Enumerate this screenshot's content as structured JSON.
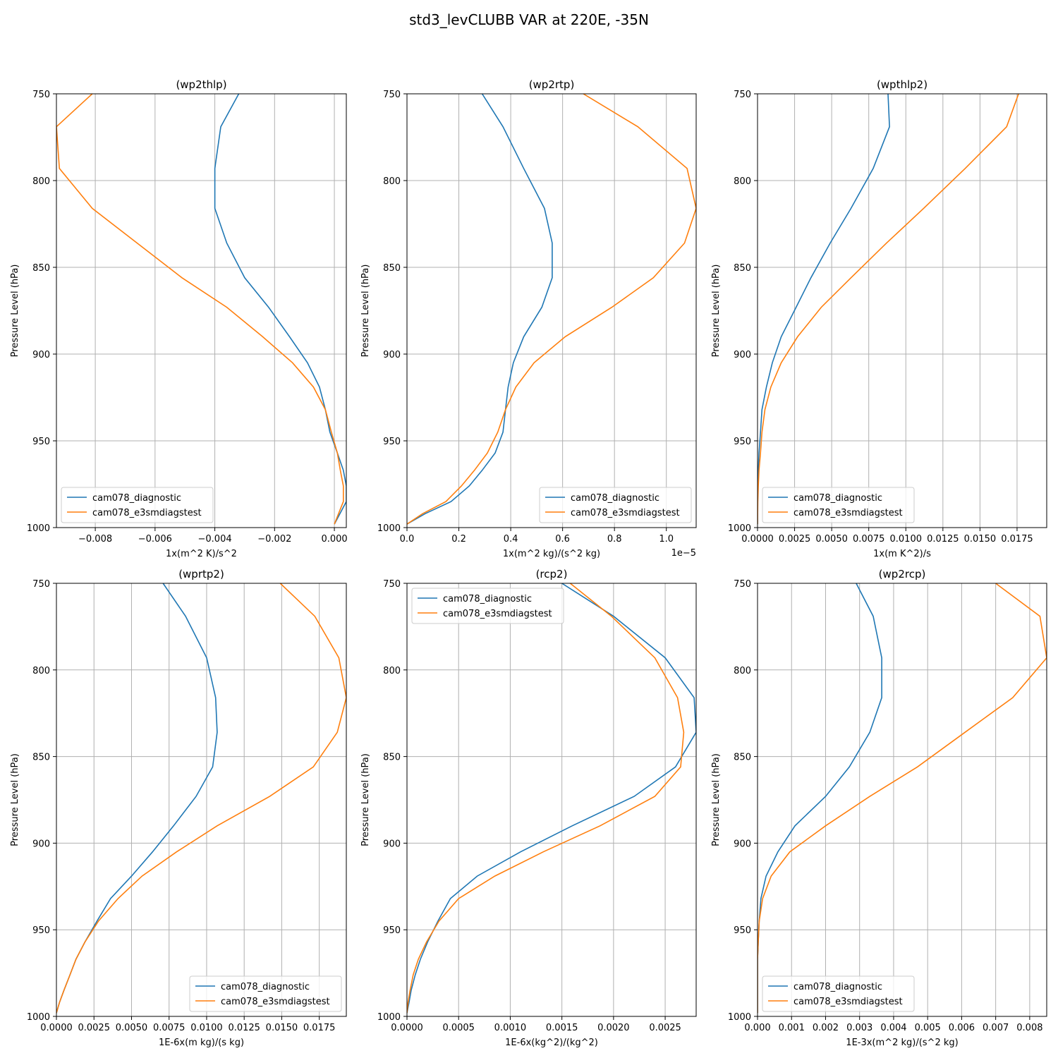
{
  "figure": {
    "title": "std3_levCLUBB VAR at 220E, -35N",
    "ylabel": "Pressure Level (hPa)",
    "series_names": [
      "cam078_diagnostic",
      "cam078_e3smdiagstest"
    ],
    "colors": {
      "cam078_diagnostic": "#1f77b4",
      "cam078_e3smdiagstest": "#ff7f0e",
      "grid": "#b0b0b0"
    }
  },
  "chart_data": [
    {
      "type": "line",
      "title": "(wp2thlp)",
      "xlabel": "1x(m^2 K)/s^2",
      "ylabel": "Pressure Level (hPa)",
      "xlim": [
        -0.0093,
        0.0004
      ],
      "ylim": [
        1000,
        750
      ],
      "xticks": [
        -0.008,
        -0.006,
        -0.004,
        -0.002,
        0.0
      ],
      "xtick_labels": [
        "−0.008",
        "−0.006",
        "−0.004",
        "−0.002",
        "0.000"
      ],
      "yticks": [
        750,
        800,
        850,
        900,
        950,
        1000
      ],
      "offset_label": "",
      "legend_loc": "lower left",
      "y": [
        750,
        769,
        793,
        816,
        836,
        856,
        873,
        890,
        905,
        919,
        932,
        945,
        957,
        967,
        976,
        985,
        998
      ],
      "series": [
        {
          "name": "cam078_diagnostic",
          "values": [
            -0.0032,
            -0.0038,
            -0.004,
            -0.004,
            -0.0036,
            -0.003,
            -0.0022,
            -0.0015,
            -0.0009,
            -0.0005,
            -0.0003,
            -0.00015,
            0.0001,
            0.0003,
            0.0004,
            0.0004,
            0.0
          ]
        },
        {
          "name": "cam078_e3smdiagstest",
          "values": [
            -0.0081,
            -0.0093,
            -0.0092,
            -0.0081,
            -0.0066,
            -0.0051,
            -0.0036,
            -0.0024,
            -0.0014,
            -0.0007,
            -0.0003,
            -0.0001,
            0.0001,
            0.0002,
            0.0003,
            0.0003,
            0.0
          ]
        }
      ]
    },
    {
      "type": "line",
      "title": "(wp2rtp)",
      "xlabel": "1x(m^2 kg)/(s^2 kg)",
      "ylabel": "Pressure Level (hPa)",
      "xlim": [
        0.0,
        1.115
      ],
      "ylim": [
        1000,
        750
      ],
      "xticks": [
        0.0,
        0.2,
        0.4,
        0.6,
        0.8,
        1.0
      ],
      "xtick_labels": [
        "0.0",
        "0.2",
        "0.4",
        "0.6",
        "0.8",
        "1.0"
      ],
      "yticks": [
        750,
        800,
        850,
        900,
        950,
        1000
      ],
      "offset_label": "1e−5",
      "legend_loc": "lower right",
      "y": [
        750,
        769,
        793,
        816,
        836,
        856,
        873,
        890,
        905,
        919,
        932,
        945,
        957,
        967,
        976,
        985,
        992,
        998
      ],
      "series": [
        {
          "name": "cam078_diagnostic",
          "values": [
            0.29,
            0.37,
            0.45,
            0.53,
            0.56,
            0.56,
            0.52,
            0.45,
            0.41,
            0.39,
            0.38,
            0.37,
            0.34,
            0.29,
            0.24,
            0.17,
            0.07,
            0.0
          ]
        },
        {
          "name": "cam078_e3smdiagstest",
          "values": [
            0.68,
            0.89,
            1.08,
            1.115,
            1.07,
            0.95,
            0.79,
            0.61,
            0.49,
            0.42,
            0.38,
            0.35,
            0.31,
            0.26,
            0.21,
            0.15,
            0.06,
            0.0
          ]
        }
      ]
    },
    {
      "type": "line",
      "title": "(wpthlp2)",
      "xlabel": "1x(m K^2)/s",
      "ylabel": "Pressure Level (hPa)",
      "xlim": [
        0.0,
        0.0195
      ],
      "ylim": [
        1000,
        750
      ],
      "xticks": [
        0.0,
        0.0025,
        0.005,
        0.0075,
        0.01,
        0.0125,
        0.015,
        0.0175
      ],
      "xtick_labels": [
        "0.0000",
        "0.0025",
        "0.0050",
        "0.0075",
        "0.0100",
        "0.0125",
        "0.0150",
        "0.0175"
      ],
      "yticks": [
        750,
        800,
        850,
        900,
        950,
        1000
      ],
      "offset_label": "",
      "legend_loc": "lower left",
      "y": [
        750,
        769,
        793,
        816,
        836,
        856,
        873,
        890,
        905,
        919,
        932,
        945,
        957,
        967,
        976,
        985,
        998
      ],
      "series": [
        {
          "name": "cam078_diagnostic",
          "values": [
            0.0088,
            0.0089,
            0.0078,
            0.0063,
            0.0049,
            0.0036,
            0.0026,
            0.0016,
            0.001,
            0.0006,
            0.0003,
            0.0002,
            0.0001,
            5e-05,
            2e-05,
            1e-05,
            0.0
          ]
        },
        {
          "name": "cam078_e3smdiagstest",
          "values": [
            0.0176,
            0.0168,
            0.014,
            0.0112,
            0.0087,
            0.0063,
            0.0043,
            0.0027,
            0.0016,
            0.0009,
            0.0005,
            0.0003,
            0.0002,
            0.0001,
            5e-05,
            2e-05,
            0.0
          ]
        }
      ]
    },
    {
      "type": "line",
      "title": "(wprtp2)",
      "xlabel": "1E-6x(m kg)/(s kg)",
      "ylabel": "Pressure Level (hPa)",
      "xlim": [
        0.0,
        0.0193
      ],
      "ylim": [
        1000,
        750
      ],
      "xticks": [
        0.0,
        0.0025,
        0.005,
        0.0075,
        0.01,
        0.0125,
        0.015,
        0.0175
      ],
      "xtick_labels": [
        "0.0000",
        "0.0025",
        "0.0050",
        "0.0075",
        "0.0100",
        "0.0125",
        "0.0150",
        "0.0175"
      ],
      "yticks": [
        750,
        800,
        850,
        900,
        950,
        1000
      ],
      "offset_label": "",
      "legend_loc": "lower right",
      "y": [
        750,
        769,
        793,
        816,
        836,
        856,
        873,
        890,
        905,
        919,
        932,
        945,
        957,
        967,
        976,
        985,
        992,
        998
      ],
      "series": [
        {
          "name": "cam078_diagnostic",
          "values": [
            0.0071,
            0.0086,
            0.01,
            0.0106,
            0.0107,
            0.0104,
            0.0093,
            0.0078,
            0.0064,
            0.005,
            0.0036,
            0.0027,
            0.0019,
            0.0013,
            0.0009,
            0.0005,
            0.0002,
            0.0
          ]
        },
        {
          "name": "cam078_e3smdiagstest",
          "values": [
            0.0149,
            0.0172,
            0.0188,
            0.0193,
            0.0187,
            0.0171,
            0.0142,
            0.0107,
            0.008,
            0.0057,
            0.0041,
            0.0028,
            0.0019,
            0.0013,
            0.0009,
            0.0005,
            0.0002,
            0.0
          ]
        }
      ]
    },
    {
      "type": "line",
      "title": "(rcp2)",
      "xlabel": "1E-6x(kg^2)/(kg^2)",
      "ylabel": "Pressure Level (hPa)",
      "xlim": [
        0.0,
        0.0028
      ],
      "ylim": [
        1000,
        750
      ],
      "xticks": [
        0.0,
        0.0005,
        0.001,
        0.0015,
        0.002,
        0.0025
      ],
      "xtick_labels": [
        "0.0000",
        "0.0005",
        "0.0010",
        "0.0015",
        "0.0020",
        "0.0025"
      ],
      "yticks": [
        750,
        800,
        850,
        900,
        950,
        1000
      ],
      "offset_label": "",
      "legend_loc": "upper left",
      "y": [
        750,
        769,
        793,
        816,
        836,
        856,
        873,
        890,
        905,
        919,
        932,
        945,
        957,
        967,
        976,
        985,
        992,
        998
      ],
      "series": [
        {
          "name": "cam078_diagnostic",
          "values": [
            0.0015,
            0.002,
            0.0025,
            0.00278,
            0.0028,
            0.0026,
            0.0022,
            0.0016,
            0.0011,
            0.00068,
            0.00042,
            0.0003,
            0.0002,
            0.00013,
            8e-05,
            4e-05,
            2e-05,
            0.0
          ]
        },
        {
          "name": "cam078_e3smdiagstest",
          "values": [
            0.00158,
            0.00198,
            0.0024,
            0.00262,
            0.00268,
            0.00265,
            0.0024,
            0.00187,
            0.00132,
            0.00085,
            0.0005,
            0.00031,
            0.00019,
            0.00011,
            6e-05,
            3e-05,
            1e-05,
            0.0
          ]
        }
      ]
    },
    {
      "type": "line",
      "title": "(wp2rcp)",
      "xlabel": "1E-3x(m^2 kg)/(s^2 kg)",
      "ylabel": "Pressure Level (hPa)",
      "xlim": [
        0.0,
        0.0085
      ],
      "ylim": [
        1000,
        750
      ],
      "xticks": [
        0.0,
        0.001,
        0.002,
        0.003,
        0.004,
        0.005,
        0.006,
        0.007,
        0.008
      ],
      "xtick_labels": [
        "0.000",
        "0.001",
        "0.002",
        "0.003",
        "0.004",
        "0.005",
        "0.006",
        "0.007",
        "0.008"
      ],
      "yticks": [
        750,
        800,
        850,
        900,
        950,
        1000
      ],
      "offset_label": "",
      "legend_loc": "lower left",
      "y": [
        750,
        769,
        793,
        816,
        836,
        856,
        873,
        890,
        905,
        919,
        932,
        945,
        957,
        967,
        976,
        985,
        998
      ],
      "series": [
        {
          "name": "cam078_diagnostic",
          "values": [
            0.0029,
            0.0034,
            0.00365,
            0.00365,
            0.0033,
            0.0027,
            0.002,
            0.0011,
            0.0006,
            0.00025,
            0.0001,
            5e-05,
            2e-05,
            0.0,
            0.0,
            0.0,
            0.0
          ]
        },
        {
          "name": "cam078_e3smdiagstest",
          "values": [
            0.007,
            0.0083,
            0.0085,
            0.0075,
            0.0061,
            0.0047,
            0.0033,
            0.002,
            0.00095,
            0.0004,
            0.00015,
            5e-05,
            2e-05,
            0.0,
            0.0,
            0.0,
            0.0
          ]
        }
      ]
    }
  ]
}
